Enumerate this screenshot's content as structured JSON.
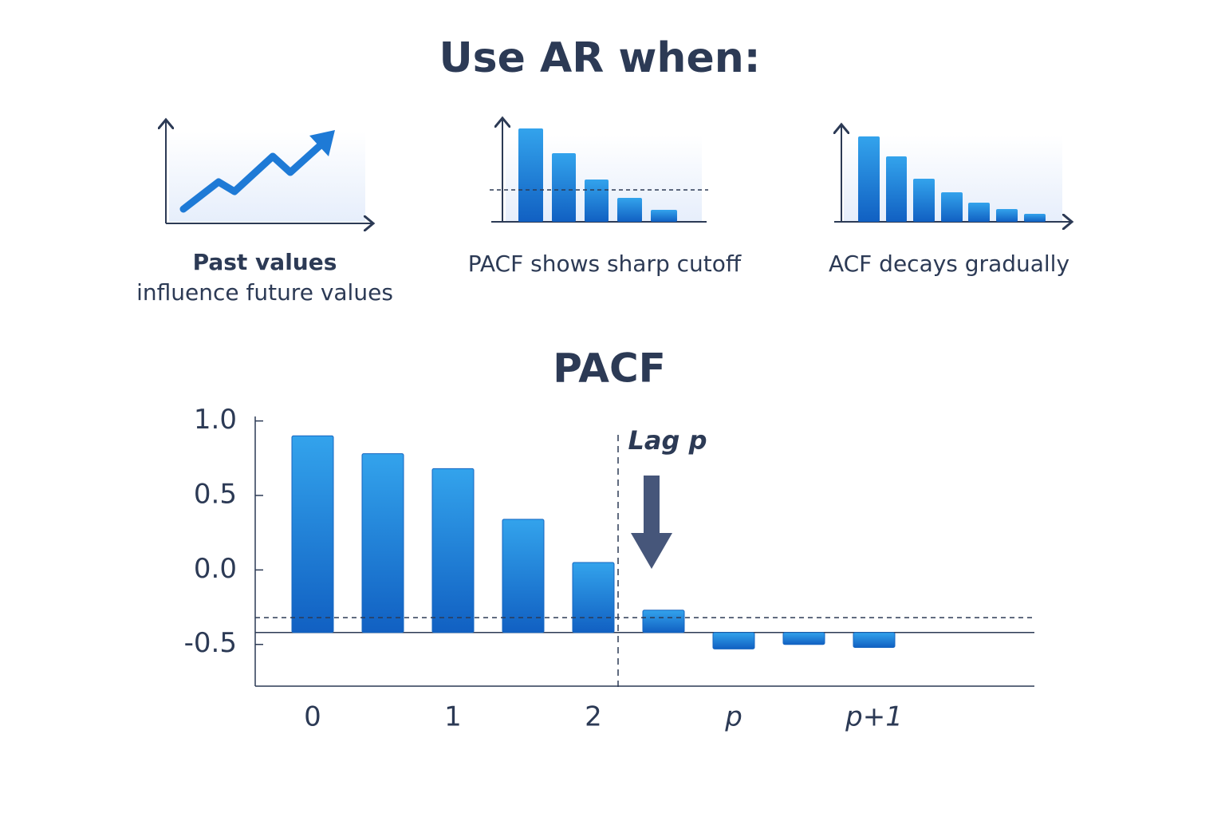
{
  "header": {
    "title": "Use AR when:"
  },
  "cards": [
    {
      "title": "Past values",
      "text": "influence future values"
    },
    {
      "text": "PACF shows sharp cutoff"
    },
    {
      "text": "ACF decays gradually"
    }
  ],
  "chart_data": {
    "type": "bar",
    "title": "PACF",
    "categories": [
      "0",
      null,
      "1",
      null,
      "2",
      null,
      "p",
      null,
      "p+1"
    ],
    "values": [
      0.9,
      0.78,
      0.68,
      0.34,
      0.05,
      -0.27,
      -0.53,
      -0.5,
      -0.52
    ],
    "baseline": -0.42,
    "threshold": -0.32,
    "annotation": "Lag p",
    "color": "#1e7ad6",
    "ylim": [
      -0.78,
      1.03
    ],
    "yticks": [
      {
        "value": 1,
        "label": "1.0"
      },
      0.5,
      {
        "value": 0,
        "label": "0.0"
      },
      -0.5
    ]
  }
}
